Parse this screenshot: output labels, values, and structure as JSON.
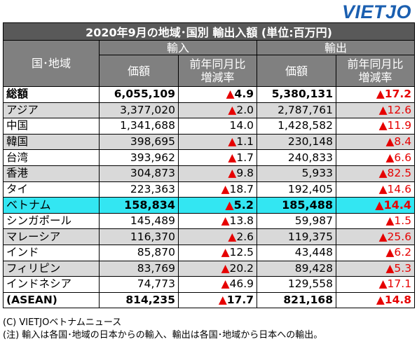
{
  "logo": "VIETJO",
  "table": {
    "title": "2020年9月の地域･国別 輸出入額 (単位:百万円)",
    "region_header": "国･地域",
    "import_header": "輸入",
    "export_header": "輸出",
    "value_header": "価額",
    "change_header_1": "前年同月比",
    "change_header_2": "増減率",
    "rows": [
      {
        "name": "総額",
        "import_value": "6,055,109",
        "import_change": "▲4.9",
        "export_value": "5,380,131",
        "export_change": "▲17.2"
      },
      {
        "name": "アジア",
        "import_value": "3,377,020",
        "import_change": "▲2.0",
        "export_value": "2,787,761",
        "export_change": "▲12.6"
      },
      {
        "name": "中国",
        "import_value": "1,341,688",
        "import_change": "14.0",
        "export_value": "1,428,582",
        "export_change": "▲11.9"
      },
      {
        "name": "韓国",
        "import_value": "398,695",
        "import_change": "▲1.1",
        "export_value": "230,148",
        "export_change": "▲8.4"
      },
      {
        "name": "台湾",
        "import_value": "393,962",
        "import_change": "▲1.7",
        "export_value": "240,833",
        "export_change": "▲6.6"
      },
      {
        "name": "香港",
        "import_value": "304,873",
        "import_change": "▲9.8",
        "export_value": "5,933",
        "export_change": "▲82.5"
      },
      {
        "name": "タイ",
        "import_value": "223,363",
        "import_change": "▲18.7",
        "export_value": "192,405",
        "export_change": "▲14.6"
      },
      {
        "name": "ベトナム",
        "import_value": "158,834",
        "import_change": "▲5.2",
        "export_value": "185,488",
        "export_change": "▲14.4"
      },
      {
        "name": "シンガポール",
        "import_value": "145,489",
        "import_change": "▲13.8",
        "export_value": "59,987",
        "export_change": "▲1.5"
      },
      {
        "name": "マレーシア",
        "import_value": "116,370",
        "import_change": "▲2.6",
        "export_value": "119,375",
        "export_change": "▲25.6"
      },
      {
        "name": "インド",
        "import_value": "85,870",
        "import_change": "▲12.5",
        "export_value": "43,448",
        "export_change": "▲6.2"
      },
      {
        "name": "フィリピン",
        "import_value": "83,769",
        "import_change": "▲20.2",
        "export_value": "89,428",
        "export_change": "▲5.3"
      },
      {
        "name": "インドネシア",
        "import_value": "74,773",
        "import_change": "▲46.9",
        "export_value": "129,558",
        "export_change": "▲17.1"
      },
      {
        "name": "(ASEAN)",
        "import_value": "814,235",
        "import_change": "▲17.7",
        "export_value": "821,168",
        "export_change": "▲14.8"
      }
    ]
  },
  "notes": {
    "credit": "(C) VIETJOベトナムニュース",
    "note": "(注) 輸入は各国･地域の日本からの輸入、輸出は各国･地域から日本への輸出。"
  },
  "colors": {
    "title_bg": "#595959",
    "header_bg": "#808080",
    "shade_bg": "#d9d9d9",
    "highlight_bg": "#33e6f2",
    "negative": "#e60000",
    "logo": "#1b5fb0"
  }
}
